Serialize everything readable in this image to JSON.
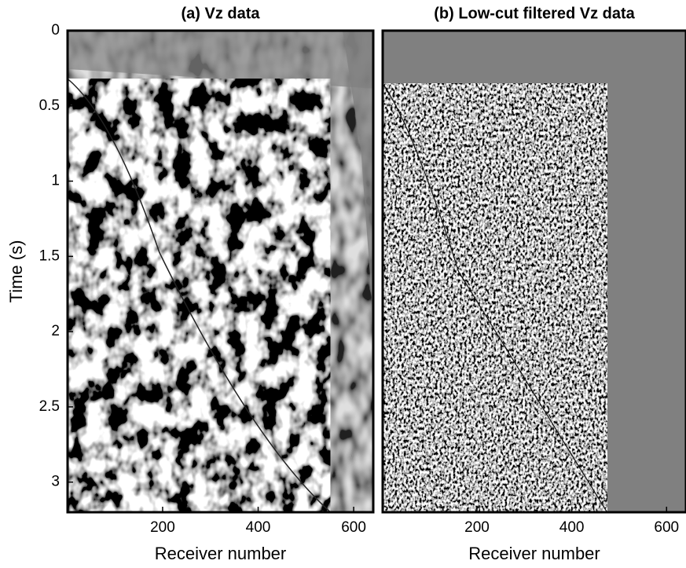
{
  "chart_data": [
    {
      "type": "image",
      "title": "(a) Vz data",
      "xlabel": "Receiver number",
      "ylabel": "Time (s)",
      "xlim": [
        1,
        641
      ],
      "ylim": [
        0,
        3.2
      ],
      "xticks": [
        200,
        400,
        600
      ],
      "yticks": [
        0,
        0.5,
        1,
        1.5,
        2,
        2.5,
        3
      ]
    },
    {
      "type": "image",
      "title": "(b) Low-cut filtered Vz data",
      "xlabel": "Receiver number",
      "xlim": [
        1,
        641
      ],
      "ylim": [
        0,
        3.2
      ],
      "xticks": [
        200,
        400,
        600
      ]
    }
  ]
}
